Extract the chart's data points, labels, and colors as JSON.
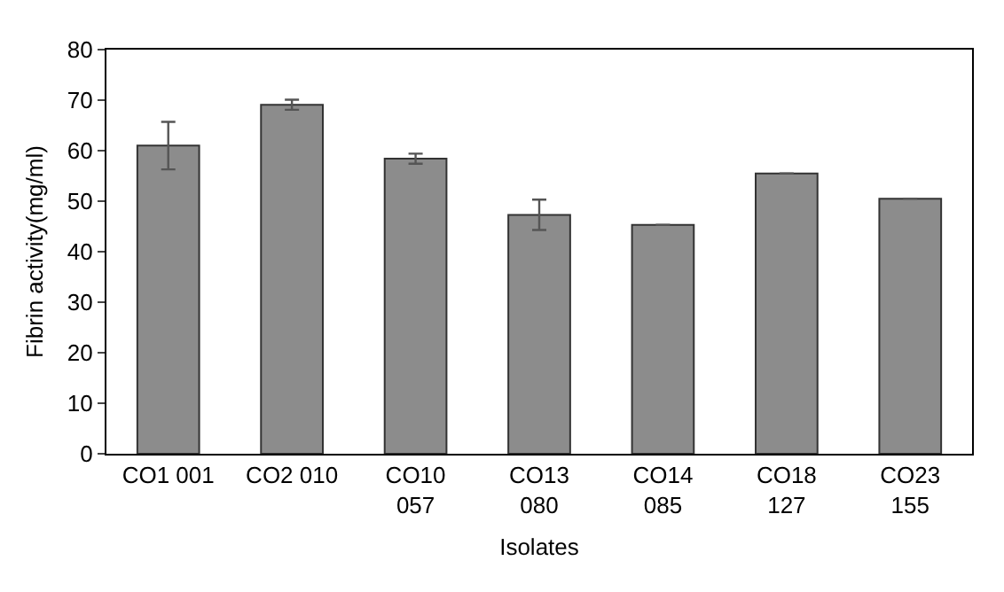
{
  "chart_data": {
    "type": "bar",
    "xlabel": "Isolates",
    "ylabel": "Fibrin activity(mg/ml)",
    "categories": [
      "CO1 001",
      "CO2 010",
      "CO10 057",
      "CO13 080",
      "CO14 085",
      "CO18 127",
      "CO23 155"
    ],
    "values": [
      61.0,
      69.1,
      58.4,
      47.3,
      45.3,
      55.5,
      50.5
    ],
    "errors": [
      4.7,
      1.0,
      1.0,
      3.0,
      null,
      null,
      null
    ],
    "color": "#8c8c8c",
    "ylim": [
      0,
      80
    ],
    "yticks": [
      0,
      10,
      20,
      30,
      40,
      50,
      60,
      70,
      80
    ],
    "grid": false
  }
}
